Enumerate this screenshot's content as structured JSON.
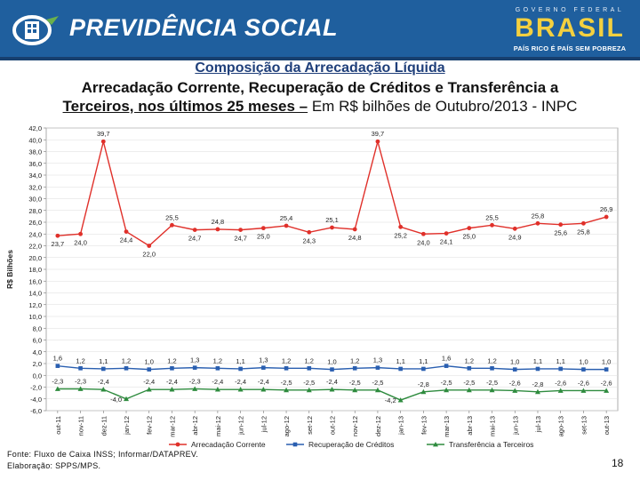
{
  "header": {
    "title": "PREVIDÊNCIA SOCIAL",
    "gov_top": "GOVERNO FEDERAL",
    "gov_brasil": "BRASIL",
    "gov_motto": "PAÍS RICO É PAÍS SEM POBREZA",
    "logo_icon": "previdencia-logo-icon",
    "colors": {
      "header_bg": "#1f5f9e",
      "brasil_yellow": "#f4d03f"
    }
  },
  "slide": {
    "title_line1": "Composição da Arrecadação Líquida",
    "title_line2": "Arrecadação Corrente, Recuperação de Créditos e Transferência a",
    "title_line3_bold": "Terceiros, nos últimos 25 meses –",
    "title_line3_rest": " Em R$ bilhões de Outubro/2013 - INPC",
    "footer_line1": "Fonte: Fluxo de Caixa INSS; Informar/DATAPREV.",
    "footer_line2": "Elaboração: SPPS/MPS.",
    "page_number": "18"
  },
  "chart_data": {
    "type": "line",
    "ylabel": "R$ Bilhões",
    "xlabel": "",
    "ylim": [
      -6.0,
      42.0
    ],
    "ytick_step": 2.0,
    "grid": true,
    "legend_position": "bottom",
    "categories": [
      "out-11",
      "nov-11",
      "dez-11",
      "jan-12",
      "fev-12",
      "mar-12",
      "abr-12",
      "mai-12",
      "jun-12",
      "jul-12",
      "ago-12",
      "set-12",
      "out-12",
      "nov-12",
      "dez-12",
      "jan-13",
      "fev-13",
      "mar-13",
      "abr-13",
      "mai-13",
      "jun-13",
      "jul-13",
      "ago-13",
      "set-13",
      "out-13"
    ],
    "series": [
      {
        "name": "Arrecadação Corrente",
        "color": "#e0302a",
        "marker": "circle",
        "values": [
          23.7,
          24.0,
          39.7,
          24.4,
          22.0,
          25.5,
          24.7,
          24.8,
          24.7,
          25.0,
          25.4,
          24.3,
          25.1,
          24.8,
          39.7,
          25.2,
          24.0,
          24.1,
          25.0,
          25.5,
          24.9,
          25.8,
          25.6,
          25.8,
          26.9
        ],
        "labels": [
          "23,7",
          "24,0",
          "39,7",
          "24,4",
          "22,0",
          "25,5",
          "24,7",
          "24,8",
          "24,7",
          "25,0",
          "25,4",
          "24,3",
          "25,1",
          "24,8",
          "39,7",
          "25,2",
          "24,0",
          "24,1",
          "25,0",
          "25,5",
          "24,9",
          "25,8",
          "25,6",
          "25,8",
          "26,9"
        ]
      },
      {
        "name": "Recuperação de Créditos",
        "color": "#2a5fb0",
        "marker": "square",
        "values": [
          1.6,
          1.2,
          1.1,
          1.2,
          1.0,
          1.2,
          1.3,
          1.2,
          1.1,
          1.3,
          1.2,
          1.2,
          1.0,
          1.2,
          1.3,
          1.1,
          1.1,
          1.6,
          1.2,
          1.2,
          1.0,
          1.1,
          1.1,
          1.0,
          1.0
        ],
        "labels": [
          "1,6",
          "1,2",
          "1,1",
          "1,2",
          "1,0",
          "1,2",
          "1,3",
          "1,2",
          "1,1",
          "1,3",
          "1,2",
          "1,2",
          "1,0",
          "1,2",
          "1,3",
          "1,1",
          "1,1",
          "1,6",
          "1,2",
          "1,2",
          "1,0",
          "1,1",
          "1,1",
          "1,0",
          "1,0"
        ]
      },
      {
        "name": "Transferência a Terceiros",
        "color": "#2e8b3e",
        "marker": "triangle",
        "values": [
          -2.3,
          -2.3,
          -2.4,
          -4.0,
          -2.4,
          -2.4,
          -2.3,
          -2.4,
          -2.4,
          -2.4,
          -2.5,
          -2.5,
          -2.4,
          -2.5,
          -2.5,
          -4.2,
          -2.8,
          -2.5,
          -2.5,
          -2.5,
          -2.6,
          -2.8,
          -2.6,
          -2.6,
          -2.6
        ],
        "labels": [
          "-2,3",
          "-2,3",
          "-2,4",
          "-4,0",
          "-2,4",
          "-2,4",
          "-2,3",
          "-2,4",
          "-2,4",
          "-2,4",
          "-2,5",
          "-2,5",
          "-2,4",
          "-2,5",
          "-2,5",
          "-4,2",
          "-2,8",
          "-2,5",
          "-2,5",
          "-2,5",
          "-2,6",
          "-2,8",
          "-2,6",
          "-2,6",
          "-2,6"
        ]
      }
    ]
  }
}
